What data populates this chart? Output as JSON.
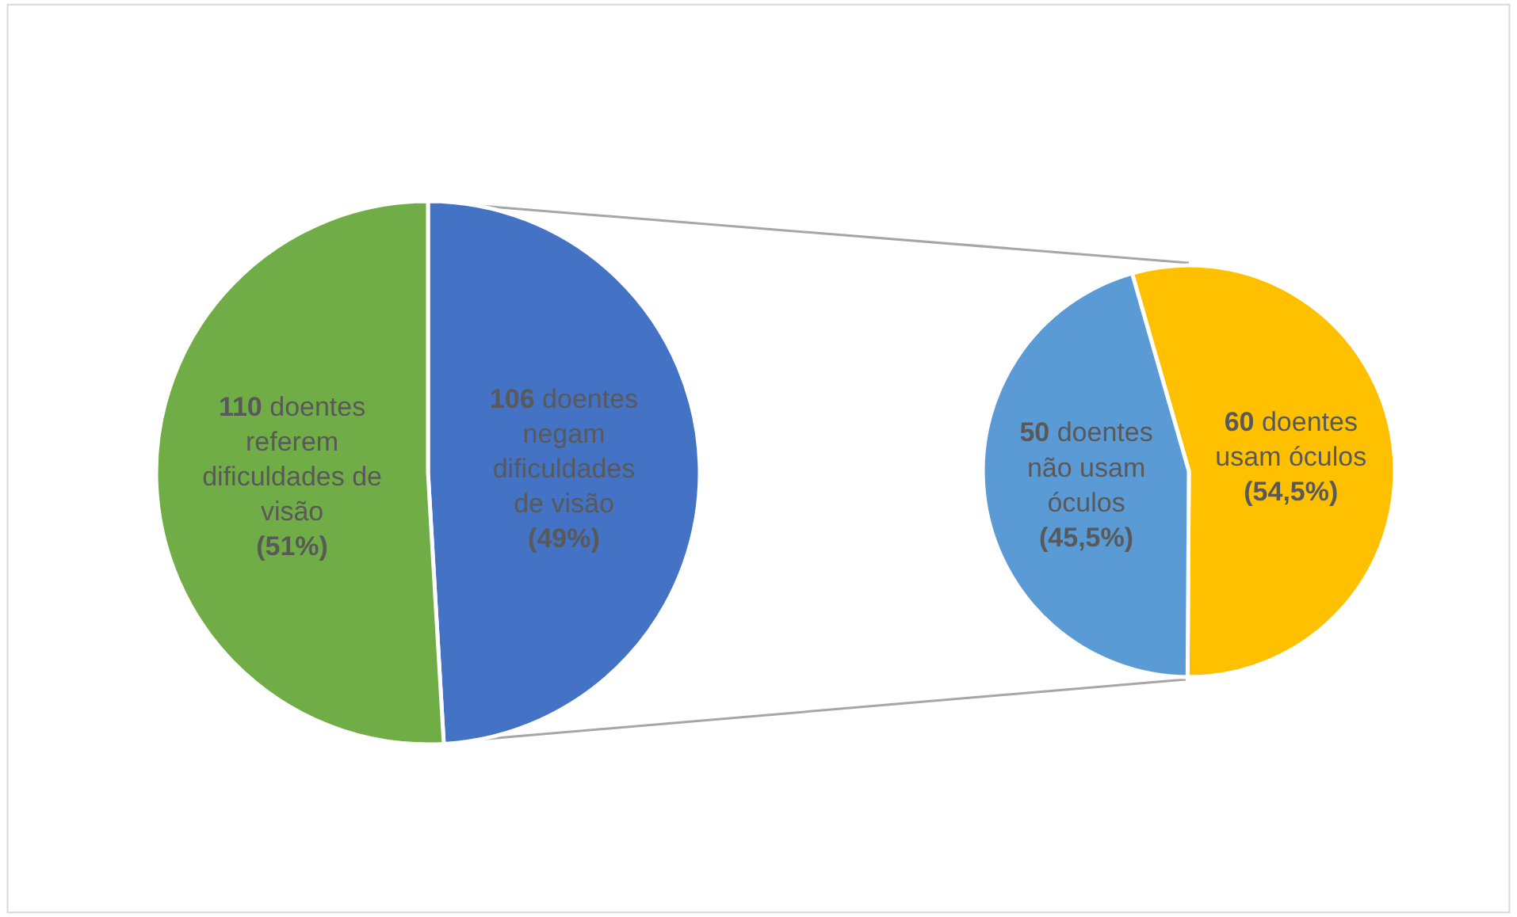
{
  "chart_data": [
    {
      "type": "pie",
      "categories": [
        null,
        null
      ],
      "values": [
        106,
        110
      ],
      "colors": [
        "#4472c4",
        "#70ad47"
      ],
      "value_labels": [
        "106 doentes\nnegam\ndificuldades\nde visão\n(49%)",
        "110 doentes\nreferem\ndificuldades de\nvisão\n(51%)"
      ]
    },
    {
      "type": "pie",
      "categories": [
        null,
        null
      ],
      "values": [
        60,
        50
      ],
      "colors": [
        "#ffc000",
        "#5b9bd5"
      ],
      "value_labels": [
        "60 doentes\nusam óculos\n(54,5%)",
        "50 doentes\nnão usam\nóculos\n(45,5%)"
      ]
    }
  ]
}
